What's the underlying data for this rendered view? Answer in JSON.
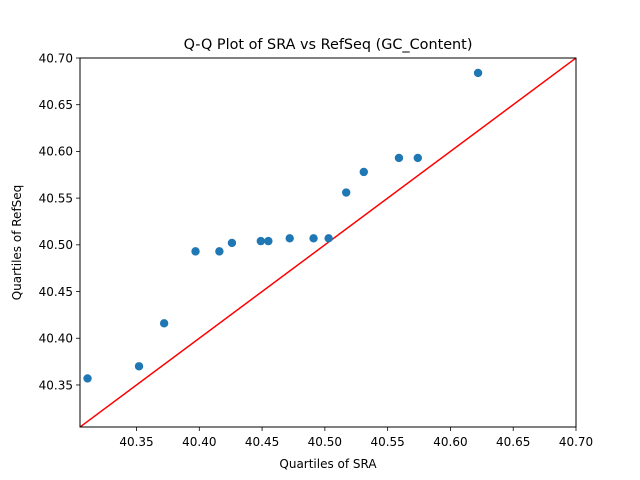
{
  "chart_data": {
    "type": "scatter",
    "title": "Q-Q Plot of SRA vs RefSeq (GC_Content)",
    "xlabel": "Quartiles of SRA",
    "ylabel": "Quartiles of RefSeq",
    "xlim": [
      40.305,
      40.7
    ],
    "ylim": [
      40.305,
      40.7
    ],
    "xticks": [
      "40.35",
      "40.40",
      "40.45",
      "40.50",
      "40.55",
      "40.60",
      "40.65",
      "40.70"
    ],
    "yticks": [
      "40.35",
      "40.40",
      "40.45",
      "40.50",
      "40.55",
      "40.60",
      "40.65",
      "40.70"
    ],
    "grid": false,
    "points": [
      {
        "x": 40.311,
        "y": 40.357
      },
      {
        "x": 40.352,
        "y": 40.37
      },
      {
        "x": 40.372,
        "y": 40.416
      },
      {
        "x": 40.397,
        "y": 40.493
      },
      {
        "x": 40.416,
        "y": 40.493
      },
      {
        "x": 40.426,
        "y": 40.502
      },
      {
        "x": 40.449,
        "y": 40.504
      },
      {
        "x": 40.455,
        "y": 40.504
      },
      {
        "x": 40.472,
        "y": 40.507
      },
      {
        "x": 40.491,
        "y": 40.507
      },
      {
        "x": 40.503,
        "y": 40.507
      },
      {
        "x": 40.517,
        "y": 40.556
      },
      {
        "x": 40.531,
        "y": 40.578
      },
      {
        "x": 40.559,
        "y": 40.593
      },
      {
        "x": 40.574,
        "y": 40.593
      },
      {
        "x": 40.622,
        "y": 40.684
      }
    ],
    "reference_line": {
      "from": [
        40.305,
        40.305
      ],
      "to": [
        40.7,
        40.7
      ]
    },
    "colors": {
      "points": "#1f77b4",
      "reference_line": "#ff0000"
    }
  }
}
